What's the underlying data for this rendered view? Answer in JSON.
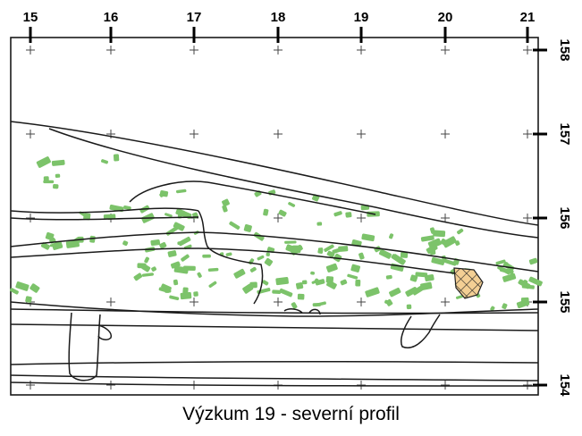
{
  "figure": {
    "caption": "Výzkum 19 - severní profil",
    "x_ticks": [
      "15",
      "16",
      "17",
      "18",
      "19",
      "20",
      "21"
    ],
    "y_ticks": [
      "158",
      "157",
      "156",
      "155",
      "154"
    ],
    "colors": {
      "background": "#ffffff",
      "line": "#1a1a1a",
      "inclusions": "#7cc36a",
      "hatched_feature": "#f3cf94"
    }
  }
}
